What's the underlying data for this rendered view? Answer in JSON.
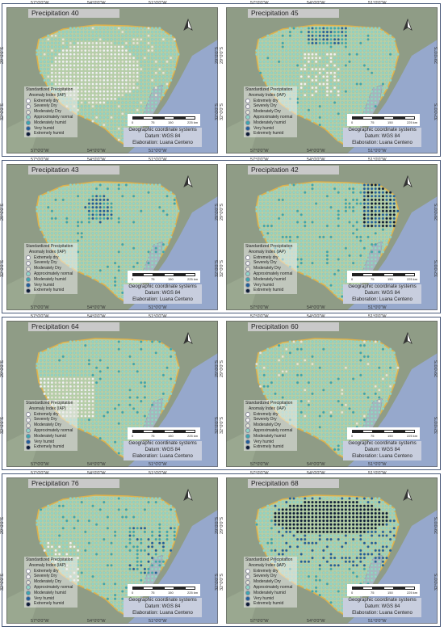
{
  "panels": [
    {
      "title": "Precipitation 40",
      "pattern": "dry_interior"
    },
    {
      "title": "Precipitation 45",
      "pattern": "wet_north"
    },
    {
      "title": "Precipitation 43",
      "pattern": "wet_north_cluster"
    },
    {
      "title": "Precipitation 42",
      "pattern": "wet_northeast"
    },
    {
      "title": "Precipitation 64",
      "pattern": "dry_southwest"
    },
    {
      "title": "Precipitation 60",
      "pattern": "mostly_normal"
    },
    {
      "title": "Precipitation 76",
      "pattern": "mixed_east"
    },
    {
      "title": "Precipitation 68",
      "pattern": "extremely_humid_north"
    }
  ],
  "longitudes": [
    "57°0'0\"W",
    "54°0'0\"W",
    "51°0'0\"W"
  ],
  "latitudes": [
    "29°0'0\"S",
    "32°0'0\"S"
  ],
  "legend": {
    "title_line1": "Standardized Precipitation",
    "title_line2": "Anomaly Index (IAP)",
    "classes": [
      {
        "label": "Extremely dry",
        "color": "#ffffff"
      },
      {
        "label": "Severely Dry",
        "color": "#f2f2f2"
      },
      {
        "label": "Moderately Dry",
        "color": "#e6e6d8"
      },
      {
        "label": "Approximately normal",
        "color": "#8fd6c8"
      },
      {
        "label": "Moderately humid",
        "color": "#3aa7b0"
      },
      {
        "label": "Very humid",
        "color": "#1f5f9a"
      },
      {
        "label": "Extremely humid",
        "color": "#0a1a33"
      }
    ]
  },
  "scale": {
    "labels": [
      "0",
      "75",
      "150",
      "225 km"
    ]
  },
  "info": {
    "line1": "Geographic coordinate systems",
    "line2": "Datum: WGS 84",
    "line3": "Elaboration: Luana Centeno"
  },
  "colors": {
    "land": "#8f9c86",
    "ocean": "#96a8cc",
    "region": "#b6cfa6",
    "border": "#e0b24a",
    "lagoon": "#a7b4c0"
  }
}
